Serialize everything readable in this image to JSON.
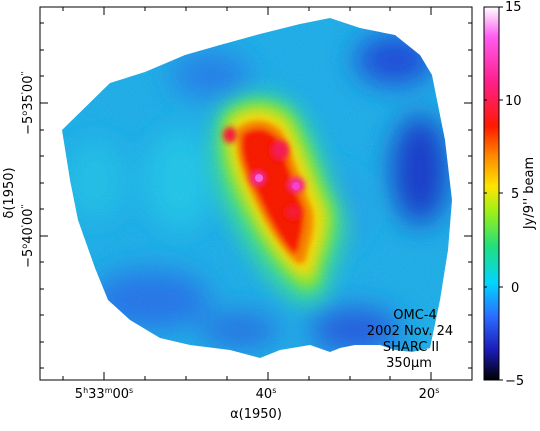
{
  "image": {
    "type": "astronomical-intensity-map",
    "colormap": "rainbow (black-blue-cyan-green-yellow-red-magenta-white)",
    "axis_x_label": "α(1950)",
    "axis_y_label": "δ(1950)",
    "x_ticks": [
      {
        "h": "5",
        "m": "33",
        "s": "00"
      },
      {
        "s": "40"
      },
      {
        "s": "20"
      }
    ],
    "y_ticks": [
      {
        "sign": "−",
        "d": "5",
        "m": "35",
        "s": "00"
      },
      {
        "sign": "−",
        "d": "5",
        "m": "40",
        "s": "00"
      }
    ],
    "colorbar": {
      "label": "Jy/9'' beam",
      "ticks": [
        "15",
        "10",
        "5",
        "0",
        "−5"
      ],
      "range": [
        -5,
        15
      ],
      "colors": [
        "#000000",
        "#1b1bb8",
        "#2b6cff",
        "#00d5ff",
        "#22e07a",
        "#9cf01a",
        "#ffe400",
        "#ff8a00",
        "#ff1a00",
        "#ff1f8c",
        "#ff5cf0",
        "#ffffff"
      ]
    },
    "annotation": {
      "lines": [
        "OMC-4",
        "2002 Nov. 24",
        "SHARC II",
        "350μm"
      ]
    }
  }
}
